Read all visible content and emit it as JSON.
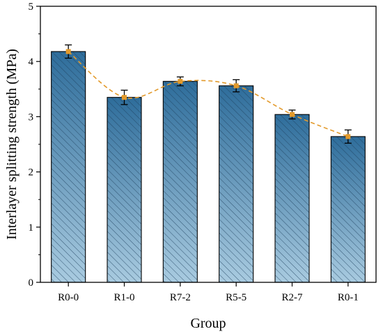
{
  "chart_data": {
    "type": "bar",
    "title": "",
    "xlabel": "Group",
    "ylabel": "Interlayer splitting strength (MPa)",
    "categories": [
      "R0-0",
      "R1-0",
      "R7-2",
      "R5-5",
      "R2-7",
      "R0-1"
    ],
    "values": [
      4.18,
      3.35,
      3.64,
      3.56,
      3.04,
      2.64
    ],
    "errors": [
      0.12,
      0.13,
      0.08,
      0.11,
      0.08,
      0.12
    ],
    "trend_line": true,
    "ylim": [
      0,
      5
    ],
    "yticks": [
      0,
      1,
      2,
      3,
      4,
      5
    ],
    "grid": false,
    "legend": "none",
    "colors": {
      "bar_top": "#2e6d9b",
      "bar_bottom": "#a9cbe0",
      "hatch": "#1c3f5c",
      "trend": "#e39a2b",
      "marker": "#e39a2b"
    }
  }
}
